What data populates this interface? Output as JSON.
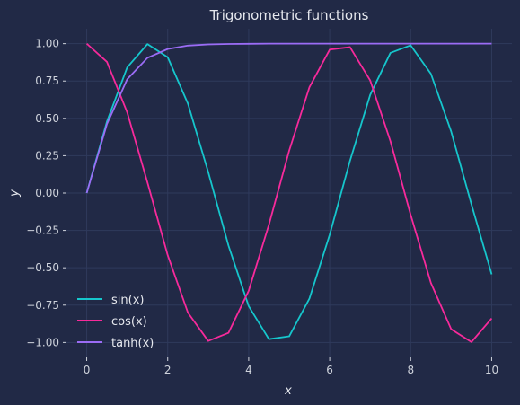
{
  "chart_data": {
    "type": "line",
    "title": "Trigonometric functions",
    "xlabel": "x",
    "ylabel": "y",
    "xlim": [
      -0.5,
      10.5
    ],
    "ylim": [
      -1.1,
      1.1
    ],
    "xticks": [
      0,
      2,
      4,
      6,
      8,
      10
    ],
    "xtick_labels": [
      "0",
      "2",
      "4",
      "6",
      "8",
      "10"
    ],
    "yticks": [
      1.0,
      0.75,
      0.5,
      0.25,
      0.0,
      -0.25,
      -0.5,
      -0.75,
      -1.0
    ],
    "ytick_labels": [
      "1.00",
      "0.75",
      "0.50",
      "0.25",
      "0.00",
      "−0.25",
      "−0.50",
      "−0.75",
      "−1.00"
    ],
    "grid": true,
    "legend_position": "lower-left",
    "x": [
      0,
      0.5,
      1,
      1.5,
      2,
      2.5,
      3,
      3.5,
      4,
      4.5,
      5,
      5.5,
      6,
      6.5,
      7,
      7.5,
      8,
      8.5,
      9,
      9.5,
      10
    ],
    "series": [
      {
        "name": "sin(x)",
        "color": "#16c6cc",
        "values": [
          0.0,
          0.479,
          0.841,
          0.997,
          0.909,
          0.598,
          0.141,
          -0.351,
          -0.757,
          -0.978,
          -0.959,
          -0.706,
          -0.279,
          0.215,
          0.657,
          0.938,
          0.989,
          0.798,
          0.412,
          -0.075,
          -0.544
        ]
      },
      {
        "name": "cos(x)",
        "color": "#f72a9b",
        "values": [
          1.0,
          0.878,
          0.54,
          0.071,
          -0.416,
          -0.801,
          -0.99,
          -0.936,
          -0.654,
          -0.211,
          0.284,
          0.709,
          0.96,
          0.977,
          0.754,
          0.347,
          -0.146,
          -0.602,
          -0.911,
          -0.997,
          -0.839
        ]
      },
      {
        "name": "tanh(x)",
        "color": "#9b6cf5",
        "values": [
          0.0,
          0.462,
          0.762,
          0.905,
          0.964,
          0.987,
          0.995,
          0.998,
          0.999,
          1.0,
          1.0,
          1.0,
          1.0,
          1.0,
          1.0,
          1.0,
          1.0,
          1.0,
          1.0,
          1.0,
          1.0
        ]
      }
    ],
    "colors": {
      "background": "#212946",
      "grid": "#2f3a5c",
      "text": "#cfd3dc"
    }
  }
}
